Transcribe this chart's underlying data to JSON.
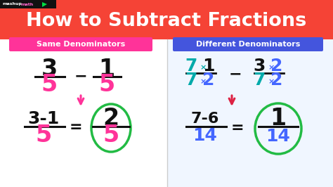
{
  "bg_color": "#ffffff",
  "header_color": "#f54336",
  "header_text": "How to Subtract Fractions",
  "header_text_color": "#ffffff",
  "left_label": "Same Denominators",
  "right_label": "Different Denominators",
  "left_label_bg": "#ff3399",
  "right_label_bg": "#4455dd",
  "label_text_color": "#ffffff",
  "pink": "#ff3399",
  "teal": "#00aaaa",
  "blue_denom": "#4466ff",
  "dark": "#111111",
  "green": "#22bb44",
  "red_arrow": "#dd2244",
  "divider_color": "#cccccc",
  "right_panel_bg": "#f0f6ff"
}
